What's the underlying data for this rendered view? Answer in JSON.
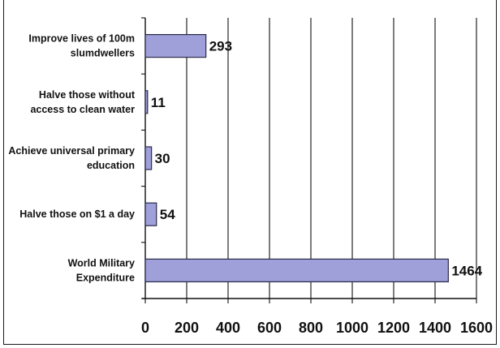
{
  "chart_data": {
    "type": "bar",
    "orientation": "horizontal",
    "categories": [
      [
        "Improve lives of 100m",
        "slumdwellers"
      ],
      [
        "Halve those without",
        "access to clean water"
      ],
      [
        "Achieve universal primary",
        "education"
      ],
      [
        "Halve those on $1 a day"
      ],
      [
        "World Military",
        "Expenditure"
      ]
    ],
    "values": [
      293,
      11,
      30,
      54,
      1464
    ],
    "value_labels": [
      "293",
      "11",
      "30",
      "54",
      "1464"
    ],
    "xlim": [
      0,
      1600
    ],
    "xticks": [
      "0",
      "200",
      "400",
      "600",
      "800",
      "1000",
      "1200",
      "1400",
      "1600"
    ],
    "grid": "vertical",
    "title": "",
    "xlabel": "",
    "ylabel": "",
    "colors": {
      "bar_fill": "#9f9fd9",
      "bar_stroke": "#2a2a4a",
      "grid": "#111111"
    }
  }
}
